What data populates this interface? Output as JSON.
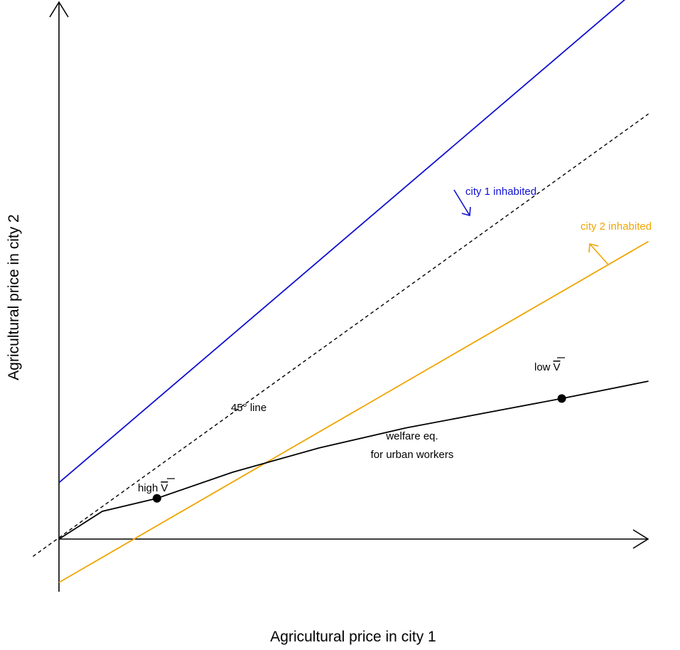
{
  "chart_data": {
    "type": "line",
    "xlabel": "Agricultural price in city 1",
    "ylabel": "Agricultural price in city 2",
    "xlim": [
      -0.3,
      6.8
    ],
    "ylim": [
      -0.65,
      6.45
    ],
    "grid": false,
    "axes_style": "arrows-from-origin",
    "series": [
      {
        "name": "city 1 inhabited",
        "color": "#1010d0",
        "style": "solid",
        "x": [
          0,
          6.8
        ],
        "y": [
          0.65,
          6.45
        ]
      },
      {
        "name": "45° line",
        "color": "#000000",
        "style": "dashed",
        "x": [
          -0.3,
          6.8
        ],
        "y": [
          -0.2,
          4.9
        ]
      },
      {
        "name": "city 2 inhabited",
        "color": "#f0a500",
        "style": "solid",
        "x": [
          0,
          6.8
        ],
        "y": [
          -0.5,
          3.43
        ]
      },
      {
        "name": "welfare eq. for urban workers",
        "color": "#000000",
        "style": "solid",
        "x": [
          0,
          0.5,
          1.13,
          2,
          3,
          4,
          5,
          5.8,
          6.8
        ],
        "y": [
          0,
          0.32,
          0.47,
          0.77,
          1.05,
          1.28,
          1.47,
          1.62,
          1.82
        ]
      }
    ],
    "points": [
      {
        "x": 1.13,
        "y": 0.47,
        "label": "high",
        "sym": "V"
      },
      {
        "x": 5.8,
        "y": 1.62,
        "label": "low",
        "sym": "V"
      }
    ],
    "annotations": {
      "city1": "city 1 inhabited",
      "city2": "city 2 inhabited",
      "line45": "45° line",
      "welfare_1": "welfare eq.",
      "welfare_2": "for urban workers"
    }
  }
}
